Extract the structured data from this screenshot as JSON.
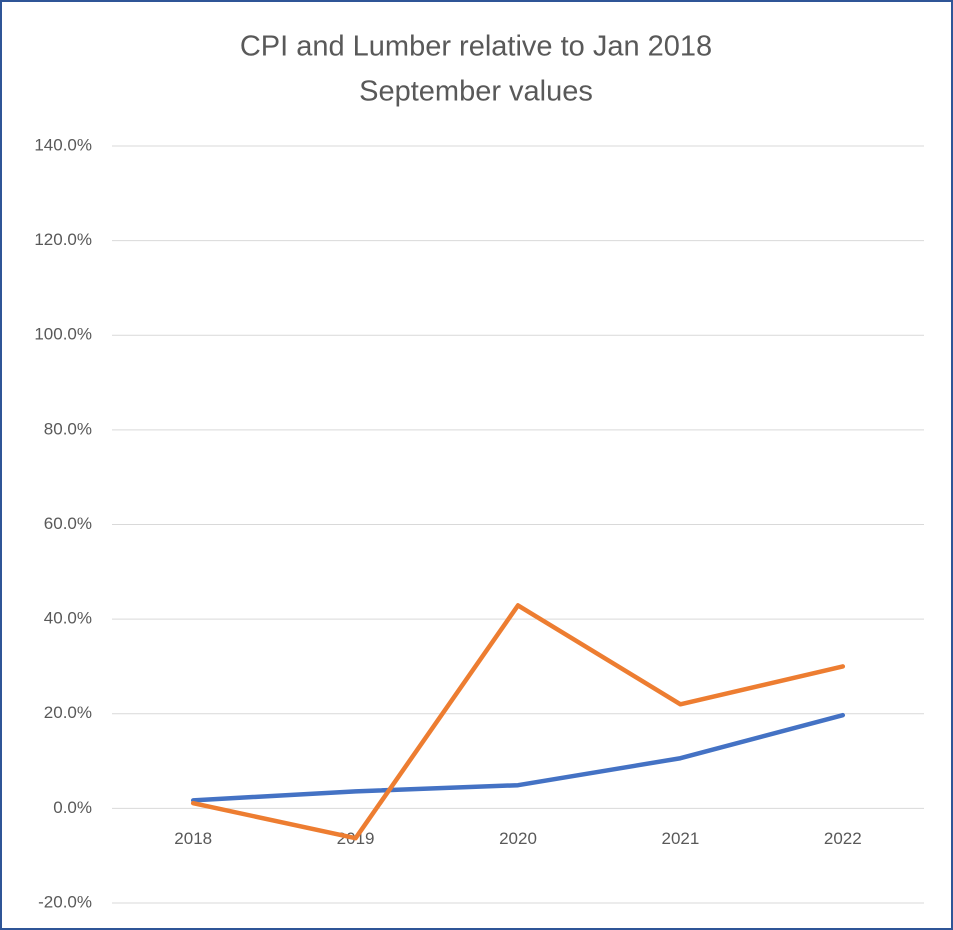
{
  "chart_data": {
    "type": "line",
    "title": "CPI and Lumber relative to Jan 2018",
    "subtitle": "September values",
    "categories": [
      "2018",
      "2019",
      "2020",
      "2021",
      "2022"
    ],
    "series": [
      {
        "color": "#4472c4",
        "values": [
          1.7,
          3.6,
          4.9,
          10.6,
          19.7
        ]
      },
      {
        "color": "#ed7d31",
        "values": [
          1.1,
          -6.3,
          42.9,
          22.0,
          30.0
        ]
      }
    ],
    "ylim": [
      -20,
      140
    ],
    "yticks": [
      {
        "value": -20,
        "label": "-20.0%"
      },
      {
        "value": 0,
        "label": "0.0%"
      },
      {
        "value": 20,
        "label": "20.0%"
      },
      {
        "value": 40,
        "label": "40.0%"
      },
      {
        "value": 60,
        "label": "60.0%"
      },
      {
        "value": 80,
        "label": "80.0%"
      },
      {
        "value": 100,
        "label": "100.0%"
      },
      {
        "value": 120,
        "label": "120.0%"
      },
      {
        "value": 140,
        "label": "140.0%"
      }
    ],
    "grid": true
  }
}
